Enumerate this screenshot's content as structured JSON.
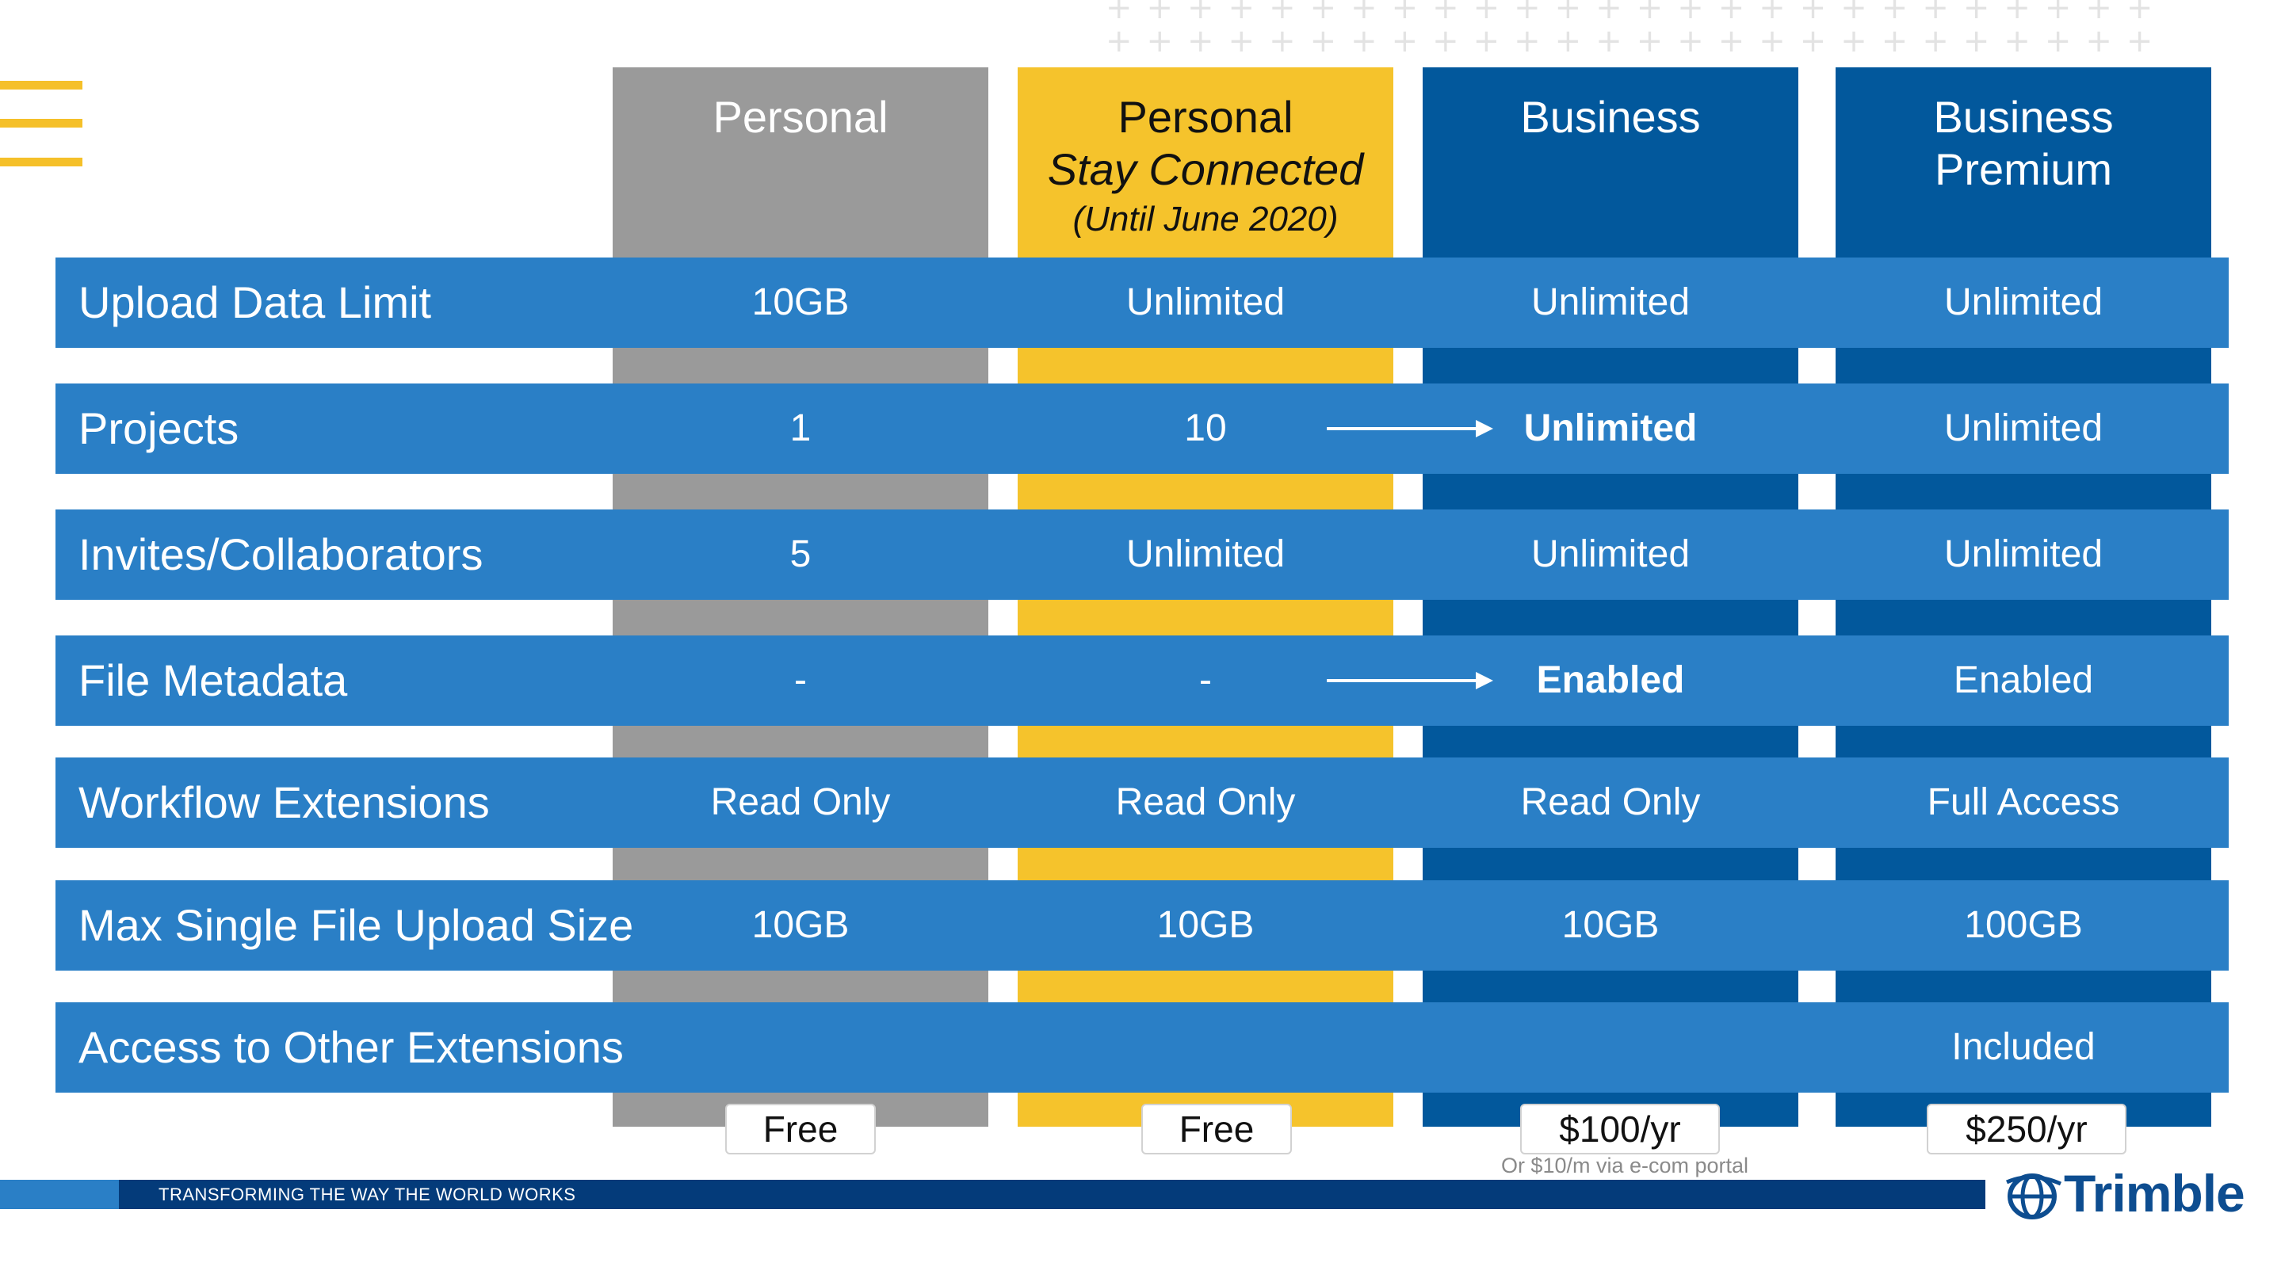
{
  "columns": {
    "personal": {
      "title": "Personal"
    },
    "stay_connected": {
      "title": "Personal",
      "subtitle": "Stay Connected",
      "note": "(Until June 2020)"
    },
    "business": {
      "title": "Business"
    },
    "business_premium": {
      "title_line1": "Business",
      "title_line2": "Premium"
    }
  },
  "rows": [
    {
      "label": "Upload Data Limit",
      "personal": "10GB",
      "stay_connected": "Unlimited",
      "business": "Unlimited",
      "business_premium": "Unlimited"
    },
    {
      "label": "Projects",
      "personal": "1",
      "stay_connected": "10",
      "business": "Unlimited",
      "business_premium": "Unlimited"
    },
    {
      "label": "Invites/Collaborators",
      "personal": "5",
      "stay_connected": "Unlimited",
      "business": "Unlimited",
      "business_premium": "Unlimited"
    },
    {
      "label": "File Metadata",
      "personal": "-",
      "stay_connected": "-",
      "business": "Enabled",
      "business_premium": "Enabled"
    },
    {
      "label": "Workflow Extensions",
      "personal": "Read Only",
      "stay_connected": "Read Only",
      "business": "Read Only",
      "business_premium": "Full Access"
    },
    {
      "label": "Max Single File Upload Size",
      "personal": "10GB",
      "stay_connected": "10GB",
      "business": "10GB",
      "business_premium": "100GB"
    },
    {
      "label": "Access to Other Extensions",
      "personal": "",
      "stay_connected": "",
      "business": "",
      "business_premium": "Included"
    }
  ],
  "prices": {
    "personal": "Free",
    "stay_connected": "Free",
    "business": "$100/yr",
    "business_note": "Or $10/m via e-com portal",
    "business_premium": "$250/yr"
  },
  "footer": {
    "tagline": "TRANSFORMING THE WAY THE WORLD WORKS"
  },
  "brand": {
    "logo_text": "Trimble",
    "logo_icon": "trimble-globe-icon"
  },
  "colors": {
    "personal": "#9a9a9a",
    "stay_connected": "#f5c32c",
    "business": "#02589c",
    "row": "#2a7fc6",
    "footer": "#043b7a"
  },
  "icons": {
    "menu": "menu-icon",
    "upgrade_arrow": "arrow-right-icon"
  }
}
